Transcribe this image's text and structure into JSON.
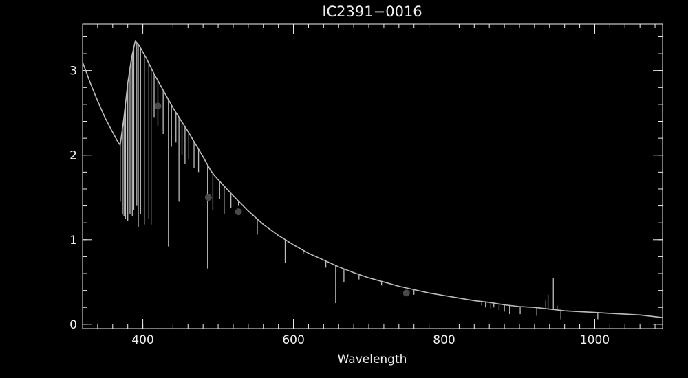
{
  "chart_data": {
    "type": "line",
    "title": "IC2391−0016",
    "xlabel": "Wavelength",
    "ylabel": "",
    "xlim": [
      320,
      1090
    ],
    "ylim": [
      -0.05,
      3.55
    ],
    "x_major_ticks": [
      400,
      600,
      800,
      1000
    ],
    "x_tick_labels": [
      "400",
      "600",
      "800",
      "1000"
    ],
    "x_minor_step": 20,
    "y_major_ticks": [
      0,
      1,
      2,
      3
    ],
    "y_tick_labels": [
      "0",
      "1",
      "2",
      "3"
    ],
    "y_minor_step": 0.2,
    "grid": false,
    "colors": {
      "background": "#000000",
      "axes": "#f0f0f0",
      "spectrum": "#bdbdbd",
      "photometry": "#4a4a4a"
    },
    "series": [
      {
        "kind": "spectrum-continuum",
        "x": [
          320,
          330,
          340,
          350,
          360,
          366,
          370,
          375,
          380,
          385,
          390,
          395,
          400,
          405,
          410,
          415,
          420,
          425,
          430,
          440,
          450,
          460,
          470,
          480,
          490,
          495,
          500,
          520,
          540,
          560,
          580,
          600,
          620,
          640,
          660,
          680,
          700,
          720,
          740,
          760,
          780,
          800,
          820,
          840,
          860,
          880,
          900,
          920,
          940,
          960,
          980,
          1000,
          1020,
          1040,
          1060,
          1080,
          1090
        ],
        "y": [
          3.1,
          2.86,
          2.64,
          2.44,
          2.27,
          2.17,
          2.12,
          2.45,
          2.85,
          3.15,
          3.35,
          3.3,
          3.22,
          3.14,
          3.05,
          2.96,
          2.88,
          2.8,
          2.72,
          2.56,
          2.42,
          2.28,
          2.13,
          1.98,
          1.82,
          1.76,
          1.71,
          1.52,
          1.34,
          1.18,
          1.05,
          0.94,
          0.84,
          0.76,
          0.68,
          0.61,
          0.55,
          0.5,
          0.45,
          0.41,
          0.37,
          0.34,
          0.31,
          0.28,
          0.26,
          0.23,
          0.21,
          0.2,
          0.18,
          0.16,
          0.15,
          0.14,
          0.13,
          0.12,
          0.11,
          0.09,
          0.08
        ]
      },
      {
        "kind": "absorption-lines",
        "lines": [
          {
            "x": 370,
            "y": 1.45
          },
          {
            "x": 373,
            "y": 1.3
          },
          {
            "x": 375,
            "y": 1.28
          },
          {
            "x": 377,
            "y": 1.25
          },
          {
            "x": 380,
            "y": 1.22
          },
          {
            "x": 383,
            "y": 1.3
          },
          {
            "x": 386,
            "y": 1.28
          },
          {
            "x": 388,
            "y": 1.35
          },
          {
            "x": 392,
            "y": 1.4
          },
          {
            "x": 394,
            "y": 1.15
          },
          {
            "x": 397,
            "y": 1.3
          },
          {
            "x": 402,
            "y": 1.18
          },
          {
            "x": 408,
            "y": 1.25
          },
          {
            "x": 411,
            "y": 1.18
          },
          {
            "x": 415,
            "y": 2.45
          },
          {
            "x": 420,
            "y": 2.35
          },
          {
            "x": 427,
            "y": 2.25
          },
          {
            "x": 434,
            "y": 0.92
          },
          {
            "x": 438,
            "y": 2.1
          },
          {
            "x": 444,
            "y": 2.15
          },
          {
            "x": 448,
            "y": 1.45
          },
          {
            "x": 452,
            "y": 2.0
          },
          {
            "x": 456,
            "y": 1.9
          },
          {
            "x": 461,
            "y": 1.95
          },
          {
            "x": 468,
            "y": 1.85
          },
          {
            "x": 474,
            "y": 1.8
          },
          {
            "x": 486,
            "y": 0.66
          },
          {
            "x": 493,
            "y": 1.35
          },
          {
            "x": 502,
            "y": 1.48
          },
          {
            "x": 508,
            "y": 1.3
          },
          {
            "x": 517,
            "y": 1.38
          },
          {
            "x": 527,
            "y": 1.4
          },
          {
            "x": 552,
            "y": 1.06
          },
          {
            "x": 589,
            "y": 0.73
          },
          {
            "x": 613,
            "y": 0.83
          },
          {
            "x": 643,
            "y": 0.67
          },
          {
            "x": 656,
            "y": 0.25
          },
          {
            "x": 667,
            "y": 0.5
          },
          {
            "x": 687,
            "y": 0.53
          },
          {
            "x": 717,
            "y": 0.46
          },
          {
            "x": 760,
            "y": 0.35
          },
          {
            "x": 850,
            "y": 0.22
          },
          {
            "x": 855,
            "y": 0.2
          },
          {
            "x": 862,
            "y": 0.19
          },
          {
            "x": 866,
            "y": 0.2
          },
          {
            "x": 873,
            "y": 0.17
          },
          {
            "x": 880,
            "y": 0.15
          },
          {
            "x": 887,
            "y": 0.12
          },
          {
            "x": 901,
            "y": 0.12
          },
          {
            "x": 923,
            "y": 0.1
          },
          {
            "x": 955,
            "y": 0.06
          },
          {
            "x": 1004,
            "y": 0.06
          }
        ]
      },
      {
        "kind": "emission-spikes",
        "lines": [
          {
            "x": 935,
            "y": 0.28
          },
          {
            "x": 938,
            "y": 0.35
          },
          {
            "x": 945,
            "y": 0.55
          },
          {
            "x": 950,
            "y": 0.22
          }
        ]
      },
      {
        "kind": "photometry-points",
        "x": [
          420,
          487,
          527,
          750
        ],
        "y": [
          2.58,
          1.5,
          1.33,
          0.37
        ]
      }
    ]
  }
}
